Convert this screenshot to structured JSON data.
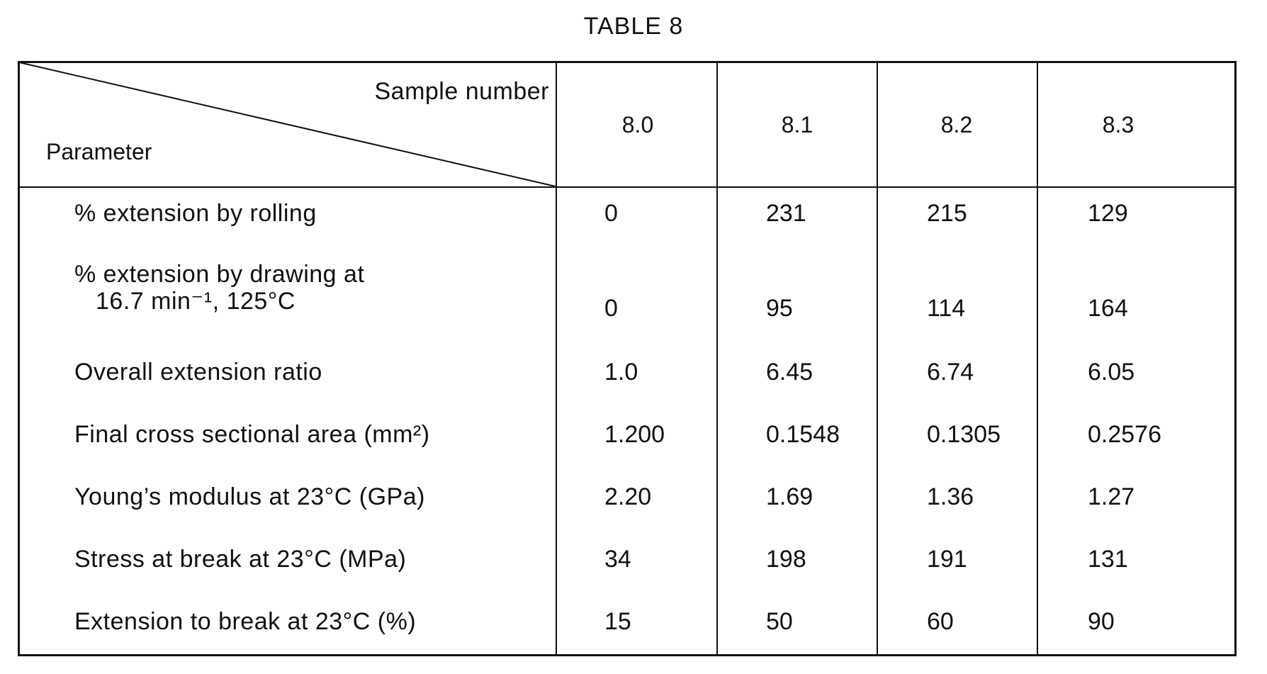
{
  "title": "TABLE 8",
  "header": {
    "sample_label": "Sample number",
    "parameter_label": "Parameter",
    "columns": [
      "8.0",
      "8.1",
      "8.2",
      "8.3"
    ]
  },
  "rows": [
    {
      "label": "% extension by rolling",
      "label2": "",
      "values": [
        "0",
        "231",
        "215",
        "129"
      ]
    },
    {
      "label": "% extension by drawing at",
      "label2": "16.7 min⁻¹, 125°C",
      "values": [
        "0",
        "95",
        "114",
        "164"
      ]
    },
    {
      "label": "Overall extension ratio",
      "label2": "",
      "values": [
        "1.0",
        "6.45",
        "6.74",
        "6.05"
      ]
    },
    {
      "label": "Final cross sectional area (mm²)",
      "label2": "",
      "values": [
        "1.200",
        "0.1548",
        "0.1305",
        "0.2576"
      ]
    },
    {
      "label": "Young’s modulus at 23°C (GPa)",
      "label2": "",
      "values": [
        "2.20",
        "1.69",
        "1.36",
        "1.27"
      ]
    },
    {
      "label": "Stress at break at 23°C (MPa)",
      "label2": "",
      "values": [
        "34",
        "198",
        "191",
        "131"
      ]
    },
    {
      "label": "Extension to break at 23°C (%)",
      "label2": "",
      "values": [
        "15",
        "50",
        "60",
        "90"
      ]
    }
  ]
}
